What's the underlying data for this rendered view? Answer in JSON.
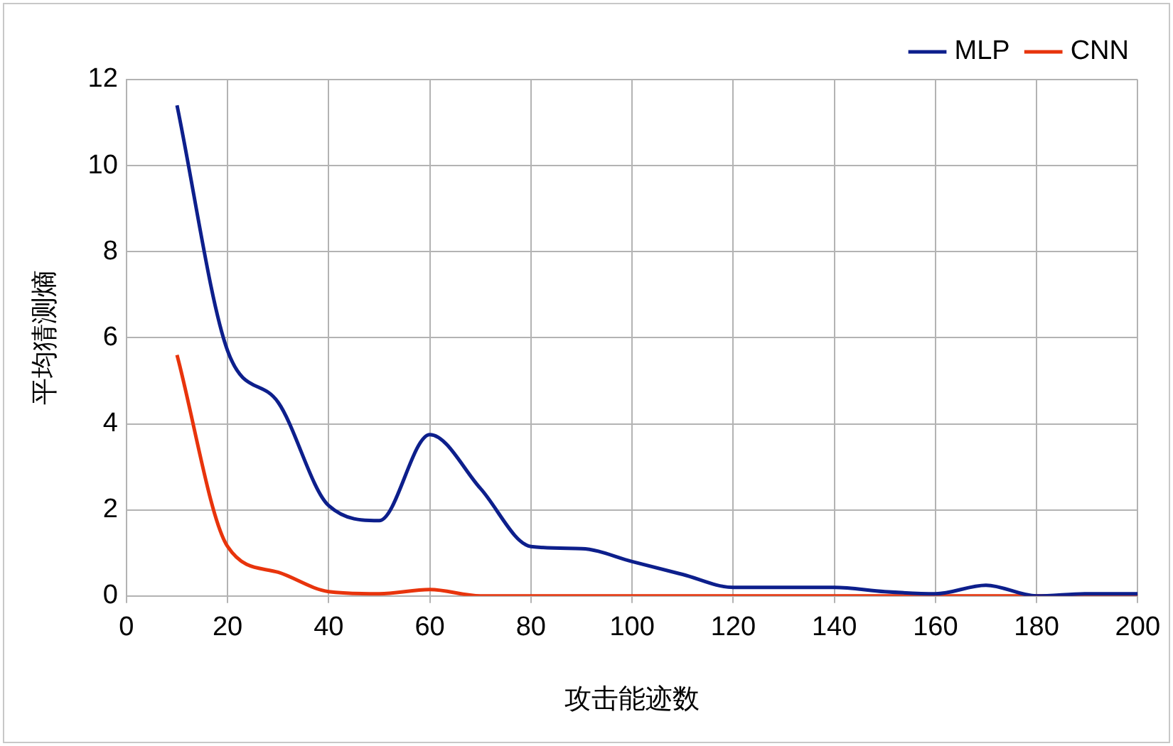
{
  "chart_data": {
    "type": "line",
    "xlabel": "攻击能迹数",
    "ylabel": "平均猜测熵",
    "x": [
      10,
      20,
      30,
      40,
      50,
      60,
      70,
      80,
      90,
      100,
      110,
      120,
      130,
      140,
      150,
      160,
      170,
      180,
      190,
      200
    ],
    "series": [
      {
        "name": "MLP",
        "color": "#0d1f8c",
        "values": [
          11.4,
          5.7,
          4.5,
          2.1,
          1.75,
          3.75,
          2.5,
          1.15,
          1.1,
          0.8,
          0.5,
          0.2,
          0.2,
          0.2,
          0.1,
          0.05,
          0.25,
          0,
          0.05,
          0.05
        ]
      },
      {
        "name": "CNN",
        "color": "#e8340c",
        "values": [
          5.6,
          1.15,
          0.55,
          0.1,
          0.05,
          0.15,
          0,
          0,
          0,
          0,
          0,
          0,
          0,
          0,
          0,
          0,
          0,
          0,
          0,
          0
        ]
      }
    ],
    "xlim": [
      0,
      200
    ],
    "xticks": [
      0,
      20,
      40,
      60,
      80,
      100,
      120,
      140,
      160,
      180,
      200
    ],
    "ylim": [
      0,
      12
    ],
    "yticks": [
      0,
      2,
      4,
      6,
      8,
      10,
      12
    ],
    "grid": true,
    "legend": "top right",
    "marker": "none",
    "line_style": "solid"
  }
}
